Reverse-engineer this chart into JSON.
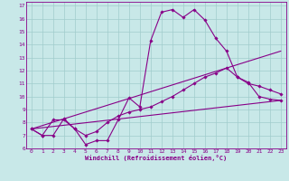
{
  "xlabel": "Windchill (Refroidissement éolien,°C)",
  "xlim": [
    -0.5,
    23.5
  ],
  "ylim": [
    6,
    17.3
  ],
  "xticks": [
    0,
    1,
    2,
    3,
    4,
    5,
    6,
    7,
    8,
    9,
    10,
    11,
    12,
    13,
    14,
    15,
    16,
    17,
    18,
    19,
    20,
    21,
    22,
    23
  ],
  "yticks": [
    6,
    7,
    8,
    9,
    10,
    11,
    12,
    13,
    14,
    15,
    16,
    17
  ],
  "bg_color": "#c8e8e8",
  "line_color": "#880088",
  "grid_color": "#a0cccc",
  "line1_x": [
    0,
    1,
    2,
    3,
    4,
    5,
    6,
    7,
    8,
    9,
    10,
    11,
    12,
    13,
    14,
    15,
    16,
    17,
    18,
    19,
    20,
    21,
    22,
    23
  ],
  "line1_y": [
    7.5,
    7.0,
    7.0,
    8.3,
    7.5,
    6.3,
    6.6,
    6.6,
    8.2,
    9.9,
    9.2,
    14.3,
    16.5,
    16.7,
    16.1,
    16.7,
    15.9,
    14.5,
    13.5,
    11.5,
    11.1,
    10.0,
    9.8,
    9.7
  ],
  "line2_x": [
    0,
    1,
    2,
    3,
    4,
    5,
    6,
    7,
    8,
    9,
    10,
    11,
    12,
    13,
    14,
    15,
    16,
    17,
    18,
    19,
    20,
    21,
    22,
    23
  ],
  "line2_y": [
    7.5,
    7.0,
    8.2,
    8.2,
    7.5,
    7.0,
    7.3,
    8.0,
    8.5,
    8.8,
    9.0,
    9.2,
    9.6,
    10.0,
    10.5,
    11.0,
    11.5,
    11.8,
    12.2,
    11.5,
    11.0,
    10.8,
    10.5,
    10.2
  ],
  "line3_x": [
    0,
    23
  ],
  "line3_y": [
    7.5,
    9.7
  ],
  "line4_x": [
    0,
    23
  ],
  "line4_y": [
    7.5,
    13.5
  ]
}
